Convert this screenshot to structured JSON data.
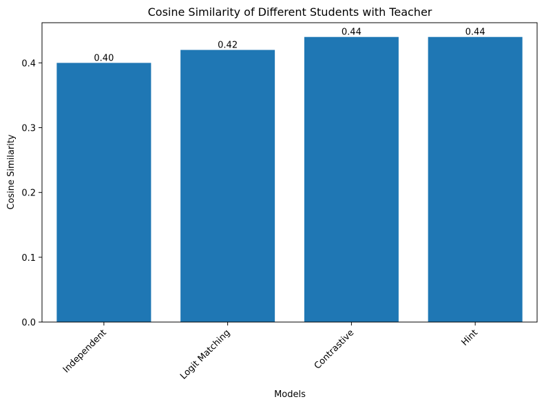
{
  "chart_data": {
    "type": "bar",
    "title": "Cosine Similarity of Different Students with Teacher",
    "xlabel": "Models",
    "ylabel": "Cosine Similarity",
    "categories": [
      "Independent",
      "Logit Matching",
      "Contrastive",
      "Hint"
    ],
    "values": [
      0.4,
      0.42,
      0.44,
      0.44
    ],
    "data_labels": [
      "0.40",
      "0.42",
      "0.44",
      "0.44"
    ],
    "ylim": [
      0,
      0.462
    ],
    "yticks": [
      0.0,
      0.1,
      0.2,
      0.3,
      0.4
    ],
    "ytick_labels": [
      "0.0",
      "0.1",
      "0.2",
      "0.3",
      "0.4"
    ],
    "bar_color": "#1f77b4",
    "grid": false,
    "legend": "none",
    "xtick_rotation_deg": 45
  }
}
